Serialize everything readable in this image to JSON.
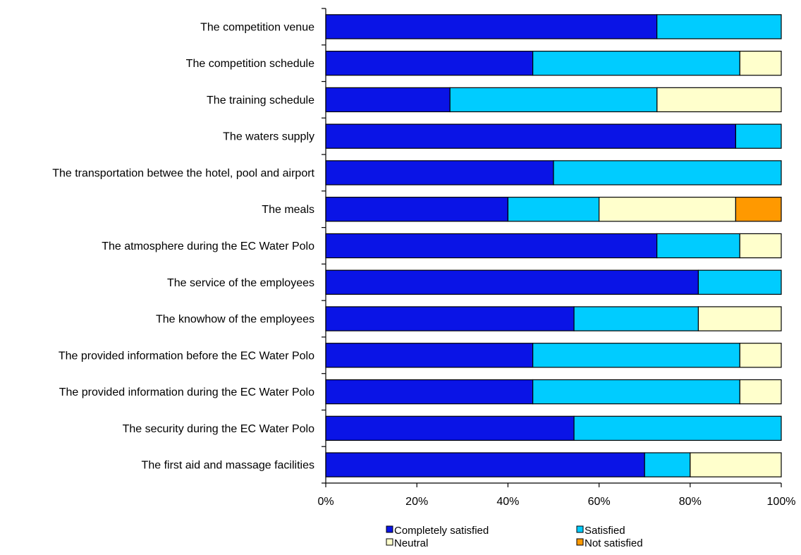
{
  "chart_data": {
    "type": "bar",
    "orientation": "horizontal",
    "stacked": "percent",
    "categories": [
      "The competition venue",
      "The competition schedule",
      "The training schedule",
      "The waters supply",
      "The transportation betwee the hotel, pool and airport",
      "The meals",
      "The atmosphere during the EC Water Polo",
      "The service of the employees",
      "The knowhow of the employees",
      "The provided information before the EC Water Polo",
      "The provided information during the EC Water Polo",
      "The security during the EC Water Polo",
      "The first aid and massage facilities"
    ],
    "series": [
      {
        "name": "Completely satisfied",
        "color": "#0a14e6",
        "values": [
          72.7,
          45.5,
          27.3,
          90.0,
          50.0,
          40.0,
          72.7,
          81.8,
          54.5,
          45.5,
          45.5,
          54.5,
          70.0
        ]
      },
      {
        "name": "Satisfied",
        "color": "#00ccff",
        "values": [
          27.3,
          45.5,
          45.5,
          10.0,
          50.0,
          20.0,
          18.2,
          18.2,
          27.3,
          45.5,
          45.5,
          45.5,
          10.0
        ]
      },
      {
        "name": "Neutral",
        "color": "#ffffcc",
        "values": [
          0,
          9.1,
          27.3,
          0,
          0,
          30.0,
          9.1,
          0,
          18.2,
          9.1,
          9.1,
          0,
          20.0
        ]
      },
      {
        "name": "Not satisfied",
        "color": "#ff9900",
        "values": [
          0,
          0,
          0,
          0,
          0,
          10.0,
          0,
          0,
          0,
          0,
          0,
          0,
          0
        ]
      }
    ],
    "xlim": [
      0,
      100
    ],
    "xticks": [
      "0%",
      "20%",
      "40%",
      "60%",
      "80%",
      "100%"
    ],
    "grid": false,
    "legend_position": "bottom"
  }
}
